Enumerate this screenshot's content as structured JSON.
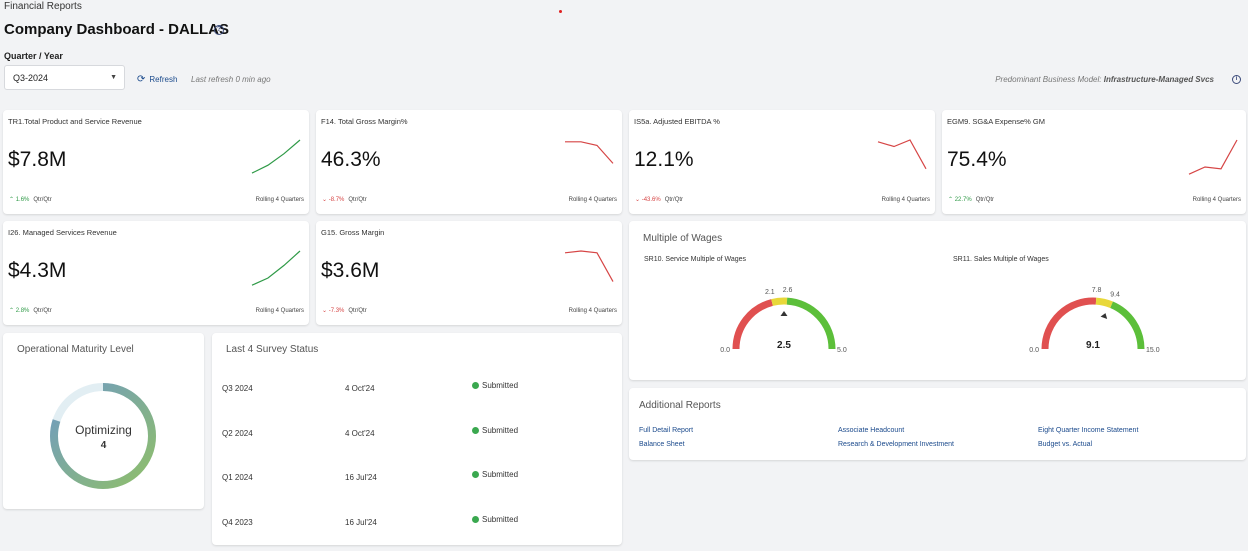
{
  "header": {
    "breadcrumb": "Financial Reports",
    "title": "Company Dashboard - DALLAS",
    "help_glyph": "?",
    "quarter_year_label": "Quarter / Year",
    "quarter_year_value": "Q3-2024",
    "refresh_label": "Refresh",
    "last_refresh": "Last refresh 0 min ago",
    "business_model_label": "Predominant Business Model:",
    "business_model_value": "Infrastructure-Managed Svcs",
    "info_glyph": "i"
  },
  "kpis": [
    {
      "title": "TR1.Total Product and Service Revenue",
      "value": "$7.8M",
      "change": "1.6%",
      "direction": "up",
      "period": "Qtr/Qtr",
      "rolling": "Rolling 4 Quarters",
      "spark": [
        0.08,
        0.3,
        0.62,
        1.0
      ],
      "color": "#2f9a47"
    },
    {
      "title": "F14. Total Gross Margin%",
      "value": "46.3%",
      "change": "-8.7%",
      "direction": "down",
      "period": "Qtr/Qtr",
      "rolling": "Rolling 4 Quarters",
      "spark": [
        0.95,
        0.95,
        0.85,
        0.35
      ],
      "color": "#d64545"
    },
    {
      "title": "IS5a. Adjusted EBITDA %",
      "value": "12.1%",
      "change": "-43.6%",
      "direction": "down",
      "period": "Qtr/Qtr",
      "rolling": "Rolling 4 Quarters",
      "spark": [
        0.95,
        0.82,
        1.0,
        0.2
      ],
      "color": "#d64545"
    },
    {
      "title": "EGM9. SG&A Expense% GM",
      "value": "75.4%",
      "change": "22.7%",
      "direction": "up",
      "period": "Qtr/Qtr",
      "rolling": "Rolling 4 Quarters",
      "spark": [
        0.05,
        0.25,
        0.2,
        1.0
      ],
      "color": "#d64545"
    },
    {
      "title": "I26. Managed Services Revenue",
      "value": "$4.3M",
      "change": "2.8%",
      "direction": "up",
      "period": "Qtr/Qtr",
      "rolling": "Rolling 4 Quarters",
      "spark": [
        0.05,
        0.25,
        0.6,
        1.0
      ],
      "color": "#2f9a47"
    },
    {
      "title": "G15. Gross Margin",
      "value": "$3.6M",
      "change": "-7.3%",
      "direction": "down",
      "period": "Qtr/Qtr",
      "rolling": "Rolling 4 Quarters",
      "spark": [
        0.95,
        1.0,
        0.95,
        0.15
      ],
      "color": "#d64545"
    }
  ],
  "wages": {
    "title": "Multiple of Wages",
    "gauges": [
      {
        "title": "SR10. Service Multiple of Wages",
        "min": 0,
        "max": 5,
        "t1": 2.1,
        "t2": 2.6,
        "value": 2.5,
        "min_label": "0.0",
        "max_label": "5.0",
        "t1_label": "2.1",
        "t2_label": "2.6",
        "value_label": "2.5"
      },
      {
        "title": "SR11. Sales Multiple of Wages",
        "min": 0,
        "max": 15,
        "t1": 7.8,
        "t2": 9.4,
        "value": 9.1,
        "min_label": "0.0",
        "max_label": "15.0",
        "t1_label": "7.8",
        "t2_label": "9.4",
        "value_label": "9.1"
      }
    ]
  },
  "maturity": {
    "title": "Operational Maturity Level",
    "label": "Optimizing",
    "level": "4",
    "progress": 0.8
  },
  "survey": {
    "title": "Last 4 Survey Status",
    "rows": [
      {
        "quarter": "Q3 2024",
        "date": "4 Oct'24",
        "status": "Submitted"
      },
      {
        "quarter": "Q2 2024",
        "date": "4 Oct'24",
        "status": "Submitted"
      },
      {
        "quarter": "Q1 2024",
        "date": "16 Jul'24",
        "status": "Submitted"
      },
      {
        "quarter": "Q4 2023",
        "date": "16 Jul'24",
        "status": "Submitted"
      }
    ]
  },
  "reports": {
    "title": "Additional Reports",
    "links": [
      "Full Detail Report",
      "Balance Sheet",
      "Associate Headcount",
      "Research & Development Investment",
      "Eight Quarter Income Statement",
      "Budget vs. Actual"
    ]
  },
  "colors": {
    "green": "#5cbf3a",
    "yellow": "#e8d83a",
    "red": "#e05050",
    "link": "#1b4a8c"
  }
}
